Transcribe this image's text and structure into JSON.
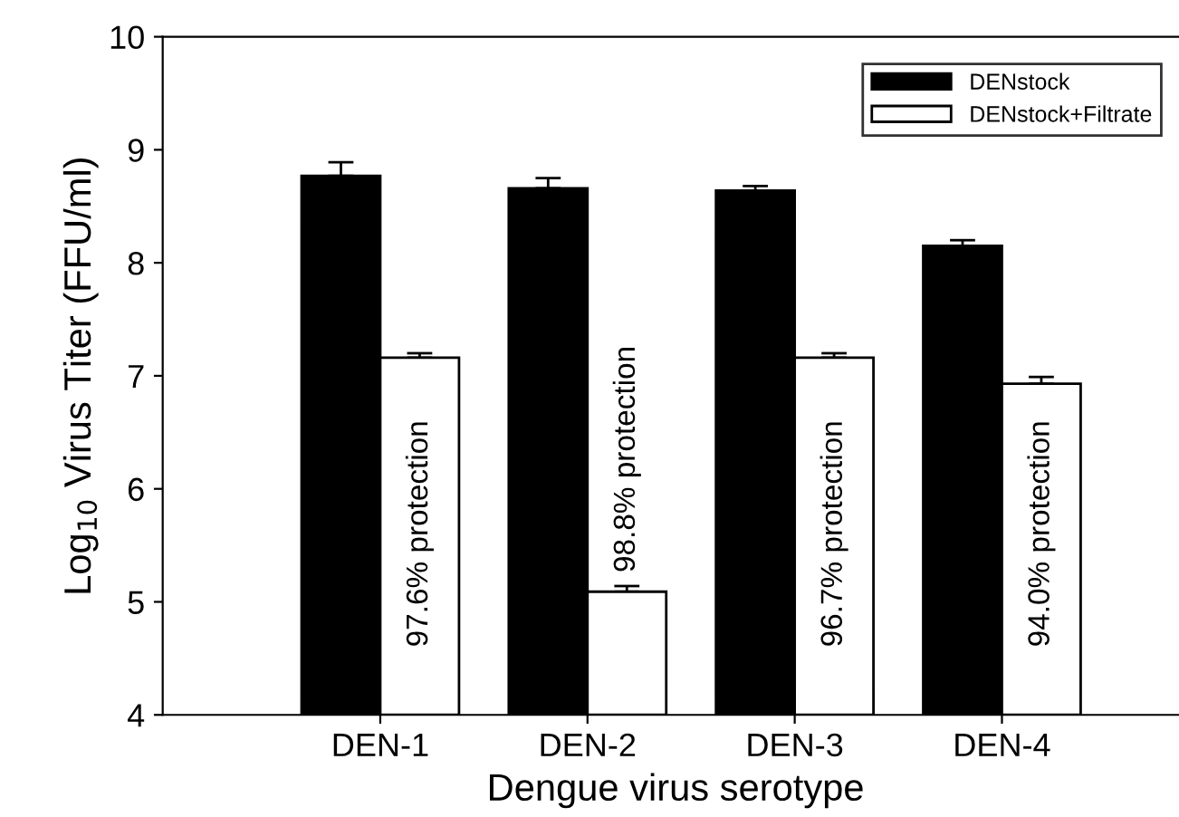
{
  "chart_data": {
    "type": "bar",
    "xlabel": "Dengue virus serotype",
    "ylabel": "Log$_{10}$ Virus Titer (FFU/ml)",
    "categories": [
      "DEN-1",
      "DEN-2",
      "DEN-3",
      "DEN-4"
    ],
    "series": [
      {
        "name": "DENstock",
        "color": "#000000",
        "values": [
          8.77,
          8.66,
          8.64,
          8.15
        ],
        "errors": [
          [
            8.77,
            8.89
          ],
          [
            8.66,
            8.75
          ],
          [
            8.64,
            8.68
          ],
          [
            8.15,
            8.2
          ]
        ]
      },
      {
        "name": "DENstock+Filtrate",
        "color": "#ffffff",
        "values": [
          7.16,
          5.09,
          7.16,
          6.93
        ],
        "errors": [
          [
            7.16,
            7.2
          ],
          [
            5.09,
            5.14
          ],
          [
            7.16,
            7.2
          ],
          [
            6.93,
            6.99
          ]
        ]
      }
    ],
    "annotations": [
      {
        "text": "97.6% protection",
        "x": "DEN-1",
        "y": 4.6
      },
      {
        "text": "98.8% protection",
        "x": "DEN-2",
        "y": 5.26
      },
      {
        "text": "96.7% protection",
        "x": "DEN-3",
        "y": 4.6
      },
      {
        "text": "94.0% protection",
        "x": "DEN-4",
        "y": 4.6
      }
    ],
    "ylim": [
      4,
      10
    ],
    "yticks": [
      4,
      5,
      6,
      7,
      8,
      9,
      10
    ],
    "legend": "top right",
    "grid": false
  }
}
